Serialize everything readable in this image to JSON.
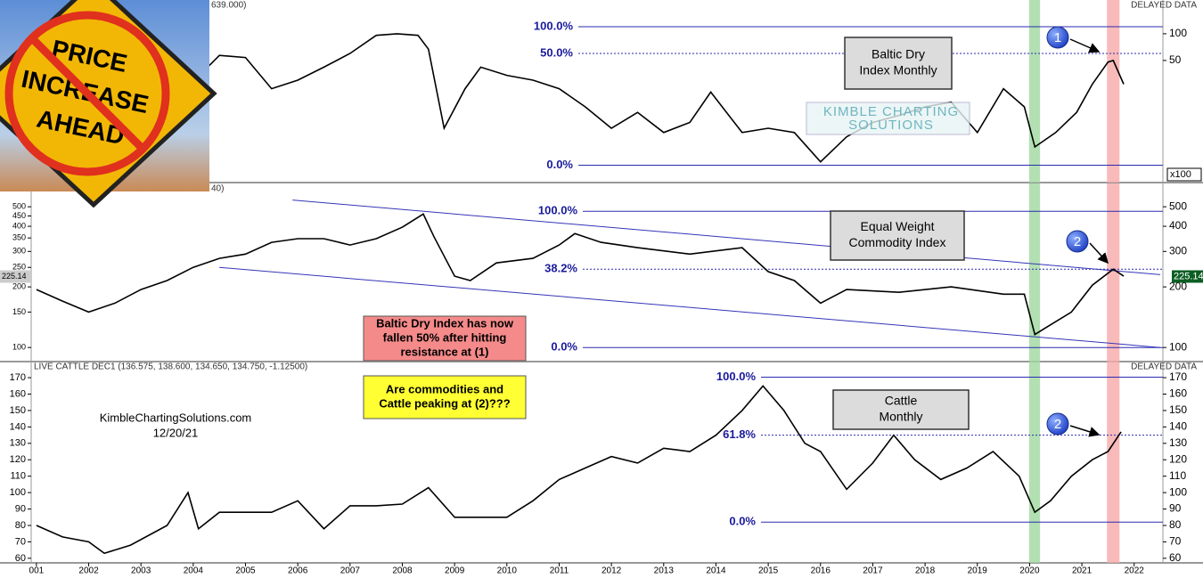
{
  "image_text": [
    "PRICE",
    "INCREASE",
    "AHEAD"
  ],
  "chart_data": [
    {
      "type": "line",
      "header_left": "639.000)",
      "header_right": "DELAYED DATA",
      "title_lines": [
        "Baltic Dry",
        "Index Monthly"
      ],
      "watermark": [
        "KIMBLE CHARTING",
        "SOLUTIONS"
      ],
      "log_scale": true,
      "xlim": [
        2000.9,
        2022.55
      ],
      "ylim": [
        2.2,
        214
      ],
      "y2ticks": [
        50,
        100
      ],
      "y2_unit_label": "x100",
      "color": "#000000",
      "x": [
        2004.2,
        2004.5,
        2005.0,
        2005.5,
        2006.0,
        2006.5,
        2007.0,
        2007.5,
        2007.9,
        2008.3,
        2008.5,
        2008.8,
        2009.2,
        2009.5,
        2010.0,
        2010.5,
        2011.0,
        2011.5,
        2012.0,
        2012.5,
        2013.0,
        2013.5,
        2013.9,
        2014.5,
        2015.0,
        2015.5,
        2016.0,
        2016.5,
        2017.0,
        2017.5,
        2018.0,
        2018.5,
        2019.0,
        2019.5,
        2019.9,
        2020.1,
        2020.5,
        2020.9,
        2021.2,
        2021.5,
        2021.6,
        2021.8
      ],
      "values": [
        38,
        57,
        54,
        24,
        30,
        42,
        60,
        96,
        100,
        96,
        67,
        8.6,
        24,
        42,
        34,
        30,
        24,
        15,
        8.6,
        13,
        7.7,
        10,
        22,
        7.7,
        8.6,
        7.7,
        3.6,
        6.9,
        10,
        12,
        15,
        17,
        7.7,
        24,
        15,
        5.3,
        7.7,
        13,
        27,
        48,
        50,
        27
      ],
      "levels": [
        {
          "label": "100.0%",
          "value": 120,
          "style": "solid"
        },
        {
          "label": "50.0%",
          "value": 60,
          "style": "dotted"
        },
        {
          "label": "0.0%",
          "value": 3.3,
          "style": "solid"
        }
      ],
      "highlights": [
        {
          "x": [
            2019.99,
            2020.2
          ],
          "color": "#9fd89f"
        },
        {
          "x": [
            2021.48,
            2021.72
          ],
          "color": "#f7a9a9"
        }
      ],
      "callouts": [
        "1"
      ]
    },
    {
      "type": "line",
      "header_left": "40)",
      "title_lines": [
        "Equal Weight",
        "Commodity Index"
      ],
      "log_scale": true,
      "xlim": [
        2000.9,
        2022.55
      ],
      "ylim": [
        86,
        646
      ],
      "yticks": [
        100,
        150,
        200,
        250,
        300,
        350,
        400,
        450,
        500
      ],
      "y2ticks": [
        100,
        200,
        300,
        400,
        500
      ],
      "last_value": 225.14,
      "color": "#000000",
      "x": [
        2001.0,
        2001.5,
        2002.0,
        2002.5,
        2003.0,
        2003.5,
        2004.0,
        2004.5,
        2005.0,
        2005.5,
        2006.0,
        2006.5,
        2007.0,
        2007.5,
        2008.0,
        2008.4,
        2008.6,
        2009.0,
        2009.3,
        2009.8,
        2010.5,
        2011.0,
        2011.3,
        2011.8,
        2012.5,
        2013.5,
        2014.5,
        2015.0,
        2015.5,
        2016.0,
        2016.5,
        2017.5,
        2018.5,
        2019.5,
        2019.9,
        2020.1,
        2020.3,
        2020.8,
        2021.2,
        2021.6,
        2021.8
      ],
      "values": [
        194,
        170,
        150,
        166,
        194,
        215,
        250,
        277,
        291,
        333,
        347,
        347,
        323,
        347,
        396,
        460,
        357,
        226,
        215,
        263,
        277,
        323,
        368,
        333,
        313,
        291,
        313,
        238,
        215,
        166,
        194,
        188,
        200,
        184,
        184,
        116,
        125,
        150,
        204,
        245,
        226
      ],
      "trendlines": [
        {
          "x": [
            2005.9,
            2022.5
          ],
          "y": [
            540,
            230
          ]
        },
        {
          "x": [
            2004.5,
            2022.5
          ],
          "y": [
            250,
            100
          ]
        }
      ],
      "levels": [
        {
          "label": "100.0%",
          "value": 475,
          "style": "solid"
        },
        {
          "label": "38.2%",
          "value": 245,
          "style": "dotted"
        },
        {
          "label": "0.0%",
          "value": 100,
          "style": "solid"
        }
      ],
      "highlights": [
        {
          "x": [
            2019.99,
            2020.2
          ],
          "color": "#9fd89f"
        },
        {
          "x": [
            2021.48,
            2021.72
          ],
          "color": "#f7a9a9"
        }
      ],
      "callouts": [
        "2"
      ],
      "notes": [
        {
          "lines": [
            "Baltic Dry Index has now",
            "fallen 50% after hitting",
            "resistance at (1)"
          ],
          "color": "#f58a8a"
        },
        {
          "lines": [
            "Are commodities and",
            "Cattle peaking at (2)???"
          ],
          "color": "#ffff33"
        }
      ]
    },
    {
      "type": "line",
      "header_left": "LIVE CATTLE DEC1 (136.575, 138.600, 134.650, 134.750, -1.12500)",
      "header_right": "DELAYED DATA",
      "title_lines": [
        "Cattle",
        "Monthly"
      ],
      "credit": [
        "KimbleChartingSolutions.com",
        "12/20/21"
      ],
      "log_scale": false,
      "xlim": [
        2000.9,
        2022.55
      ],
      "ylim": [
        58.3,
        172.2
      ],
      "yticks": [
        60,
        70,
        80,
        90,
        100,
        110,
        120,
        130,
        140,
        150,
        160,
        170
      ],
      "y2ticks": [
        60,
        70,
        80,
        90,
        100,
        110,
        120,
        130,
        140,
        150,
        160,
        170
      ],
      "xticks": [
        {
          "value": 2001,
          "label": "001"
        },
        2002,
        2003,
        2004,
        2005,
        2006,
        2007,
        2008,
        2009,
        2010,
        2011,
        2012,
        2013,
        2014,
        2015,
        2016,
        2017,
        2018,
        2019,
        2020,
        2021,
        2022
      ],
      "color": "#000000",
      "x": [
        2001.0,
        2001.5,
        2002.0,
        2002.3,
        2002.8,
        2003.5,
        2003.9,
        2004.1,
        2004.5,
        2005.0,
        2005.5,
        2006.0,
        2006.5,
        2007.0,
        2007.5,
        2008.0,
        2008.5,
        2009.0,
        2009.5,
        2010.0,
        2010.5,
        2011.0,
        2011.5,
        2012.0,
        2012.5,
        2013.0,
        2013.5,
        2014.0,
        2014.5,
        2014.9,
        2015.3,
        2015.7,
        2016.0,
        2016.5,
        2017.0,
        2017.4,
        2017.8,
        2018.3,
        2018.8,
        2019.3,
        2019.8,
        2020.1,
        2020.4,
        2020.8,
        2021.2,
        2021.5,
        2021.75
      ],
      "values": [
        80,
        73,
        70,
        63,
        68,
        80,
        100,
        78,
        88,
        88,
        88,
        95,
        78,
        92,
        92,
        93,
        103,
        85,
        85,
        85,
        95,
        108,
        115,
        122,
        118,
        127,
        125,
        135,
        150,
        165,
        150,
        130,
        125,
        102,
        118,
        135,
        120,
        108,
        115,
        125,
        110,
        88,
        95,
        110,
        120,
        125,
        137
      ],
      "levels": [
        {
          "label": "100.0%",
          "value": 170.3,
          "style": "solid"
        },
        {
          "label": "61.8%",
          "value": 135,
          "style": "dotted"
        },
        {
          "label": "0.0%",
          "value": 82,
          "style": "solid"
        }
      ],
      "highlights": [
        {
          "x": [
            2019.99,
            2020.2
          ],
          "color": "#9fd89f"
        },
        {
          "x": [
            2021.48,
            2021.72
          ],
          "color": "#f7a9a9"
        }
      ],
      "callouts": [
        "2"
      ]
    }
  ]
}
